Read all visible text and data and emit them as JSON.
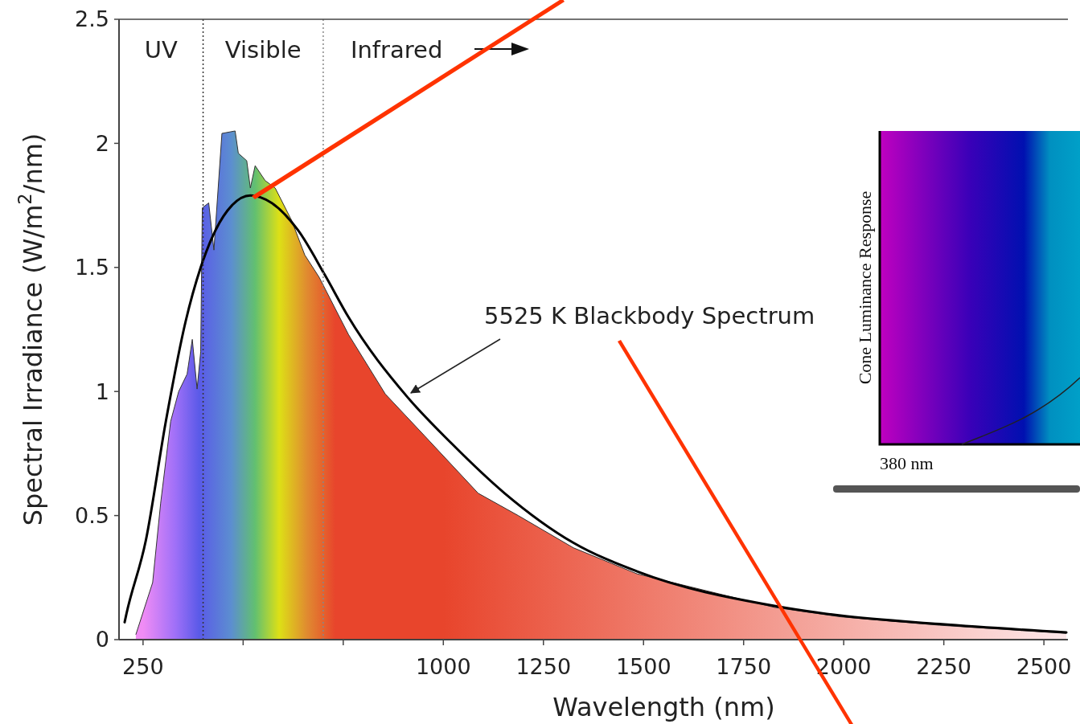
{
  "chart_data": {
    "type": "area",
    "xlabel": "Wavelength (nm)",
    "ylabel": "Spectral Irradiance (W/m$^{2}$/nm)",
    "xlim": [
      190,
      2560
    ],
    "ylim": [
      0,
      2.5
    ],
    "xticks": [
      250,
      {
        "value": 500,
        "label": null
      },
      {
        "value": 750,
        "label": null
      },
      1000,
      1250,
      1500,
      1750,
      2000,
      2250,
      2500
    ],
    "yticks": [
      0,
      0.5,
      1,
      1.5,
      2,
      2.5
    ],
    "series": [
      {
        "type": "area",
        "color": "#e8452c",
        "x": [
          232,
          274,
          294,
          319,
          339,
          360,
          373,
          385,
          394,
          398,
          414,
          427,
          447,
          480,
          488,
          509,
          518,
          530,
          555,
          580,
          621,
          654,
          690,
          763,
          855,
          954,
          1087,
          1187,
          1325,
          1484,
          1827,
          1992,
          2239,
          2556
        ],
        "values": [
          0.02,
          0.23,
          0.55,
          0.88,
          1.0,
          1.07,
          1.21,
          1.01,
          1.16,
          1.74,
          1.76,
          1.57,
          2.04,
          2.05,
          1.96,
          1.93,
          1.82,
          1.91,
          1.85,
          1.82,
          1.69,
          1.55,
          1.46,
          1.23,
          0.99,
          0.82,
          0.59,
          0.5,
          0.37,
          0.265,
          0.13,
          0.092,
          0.058,
          0.025
        ]
      },
      {
        "type": "line",
        "color": "#000000",
        "x": [
          204,
          208,
          257,
          307,
          356,
          394,
          431,
          472,
          518,
          571,
          637,
          704,
          763,
          909,
          1021,
          1153,
          1325,
          1484,
          1827,
          1992,
          2239,
          2556
        ],
        "values": [
          0.07,
          0.1,
          0.4,
          0.88,
          1.28,
          1.5,
          1.65,
          1.75,
          1.79,
          1.76,
          1.65,
          1.47,
          1.3,
          0.98,
          0.79,
          0.59,
          0.39,
          0.275,
          0.136,
          0.097,
          0.063,
          0.029
        ]
      }
    ],
    "ref_lines": [
      {
        "axis": "x",
        "value": 400,
        "line_style": "dotted",
        "color": "#333333"
      },
      {
        "axis": "x",
        "value": 700,
        "line_style": "dotted",
        "color": "#888888"
      }
    ],
    "annotations": [
      "UV",
      "Visible",
      "Infrared",
      "5525 K Blackbody Spectrum",
      "Cone Luminance Response",
      "380 nm"
    ],
    "grid": false
  }
}
